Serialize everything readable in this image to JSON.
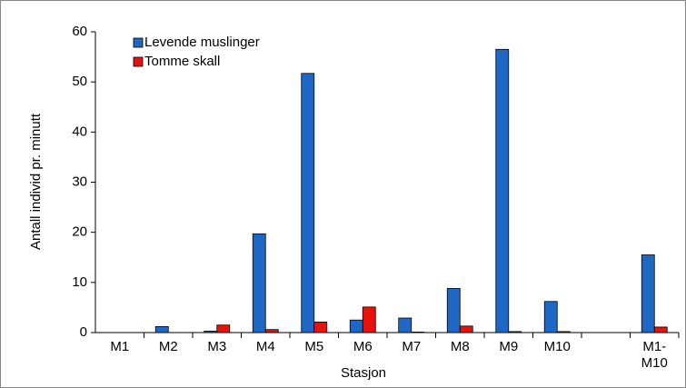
{
  "chart_data": {
    "type": "bar",
    "x_label": "Stasjon",
    "y_label": "Antall individ pr. minutt",
    "categories": [
      "M1",
      "M2",
      "M3",
      "M4",
      "M5",
      "M6",
      "M7",
      "M8",
      "M9",
      "M10",
      null,
      "M1-\nM10"
    ],
    "series": [
      {
        "name": "Levende muslinger",
        "color": "#1f67c4",
        "values": [
          0,
          1.2,
          0.3,
          19.7,
          51.7,
          2.5,
          2.9,
          8.8,
          56.5,
          6.2,
          null,
          15.5
        ]
      },
      {
        "name": "Tomme skall",
        "color": "#e8120c",
        "values": [
          0,
          0,
          1.5,
          0.6,
          2.1,
          5.1,
          0.1,
          1.3,
          0.2,
          0.2,
          null,
          1.1
        ]
      }
    ],
    "ylim": [
      0,
      60
    ],
    "yticks": [
      0,
      10,
      20,
      30,
      40,
      50,
      60
    ],
    "legend": "upper left"
  }
}
